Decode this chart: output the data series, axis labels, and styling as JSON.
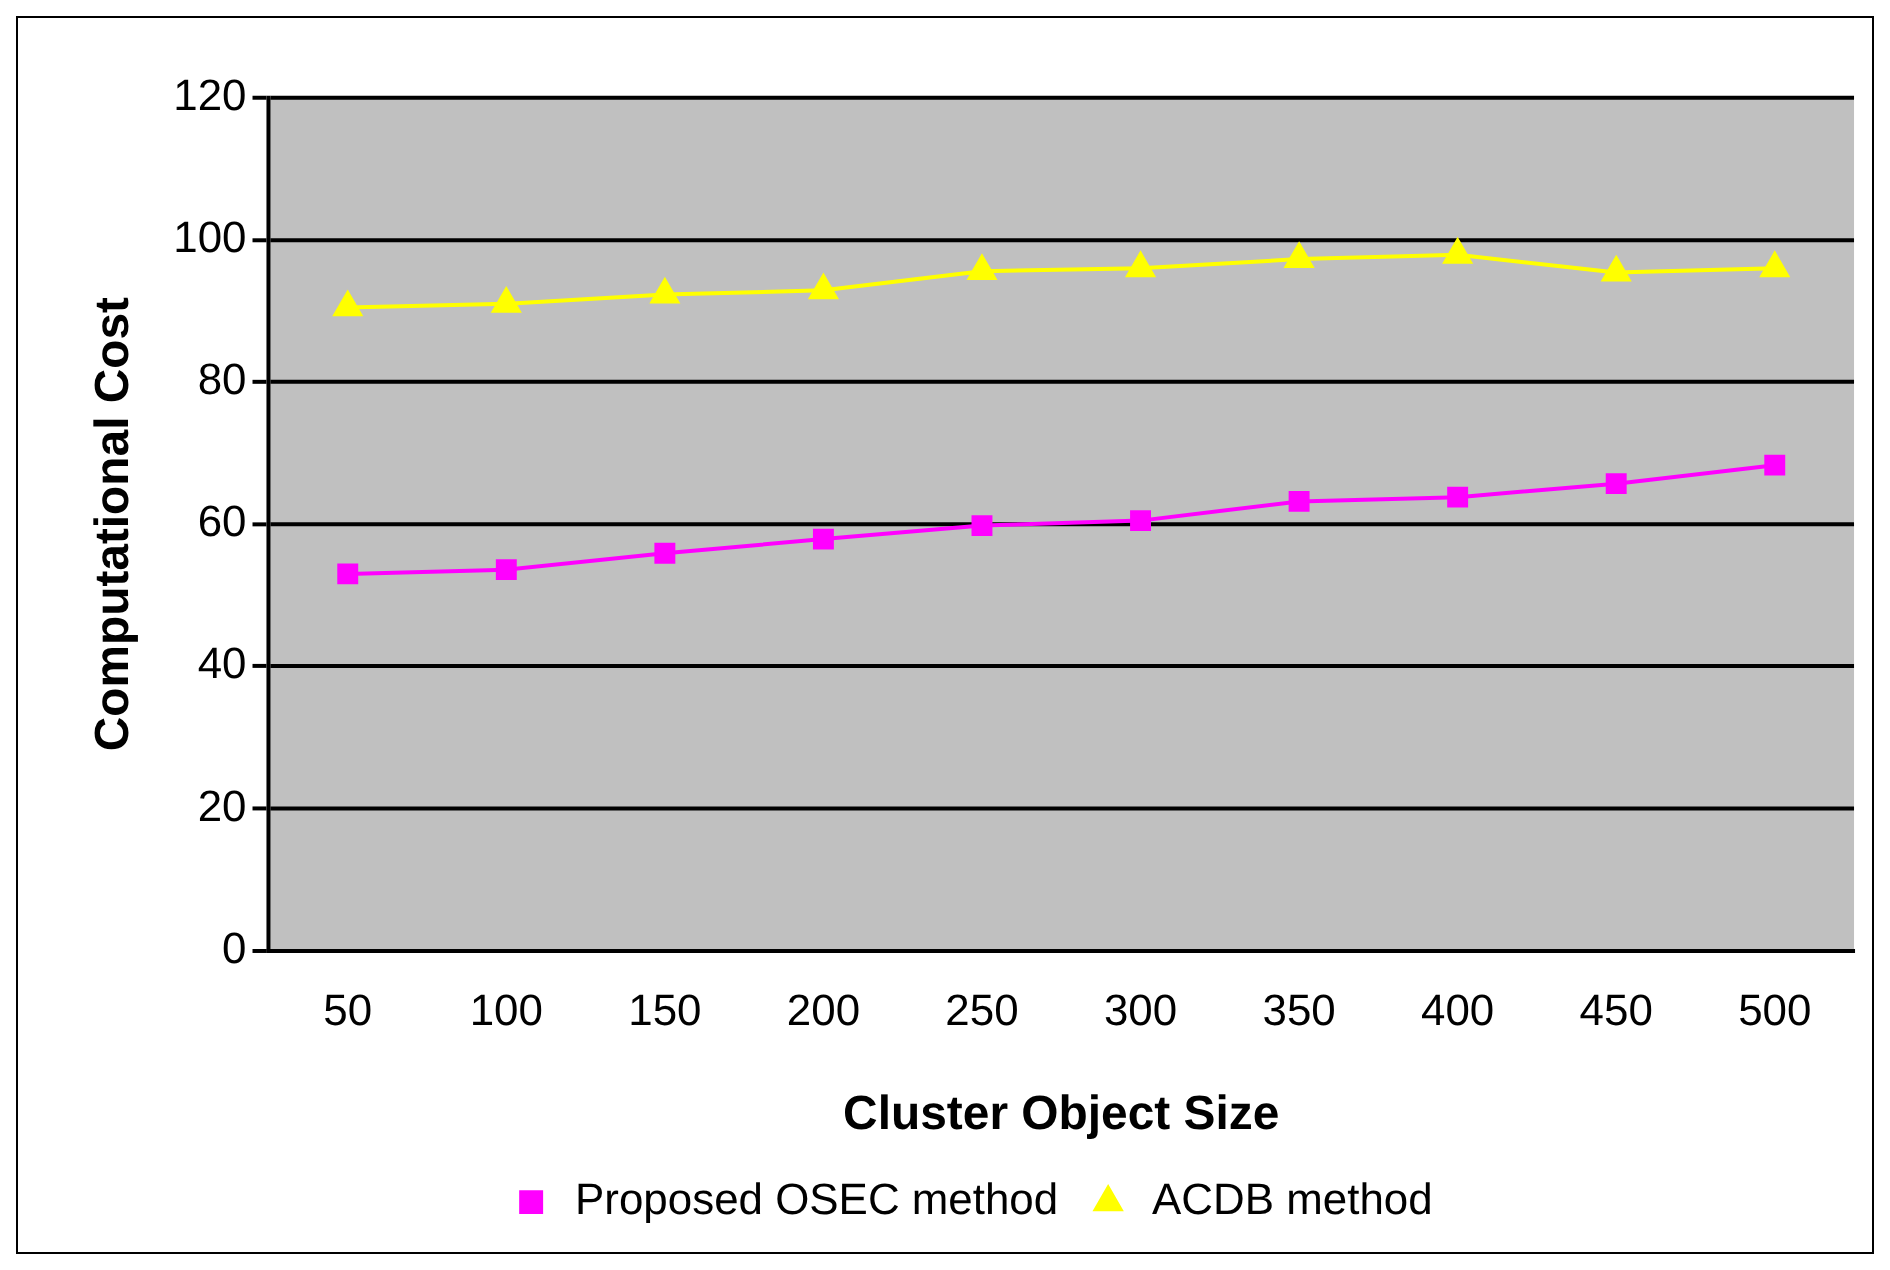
{
  "chart_data": {
    "type": "line",
    "xlabel": "Cluster Object Size",
    "ylabel": "Computational Cost",
    "categories": [
      "50",
      "100",
      "150",
      "200",
      "250",
      "300",
      "350",
      "400",
      "450",
      "500"
    ],
    "series": [
      {
        "name": "Proposed OSEC method",
        "color": "#ff00ff",
        "marker": "square",
        "values": [
          53,
          53.6,
          55.9,
          57.9,
          59.8,
          60.5,
          63.2,
          63.8,
          65.7,
          68.3
        ]
      },
      {
        "name": "ACDB method",
        "color": "#ffff00",
        "marker": "triangle",
        "values": [
          90.5,
          91,
          92.3,
          92.9,
          95.6,
          96,
          97.3,
          97.9,
          95.4,
          96
        ]
      }
    ],
    "ylim": [
      0,
      120
    ],
    "yticks": [
      0,
      20,
      40,
      60,
      80,
      100,
      120
    ],
    "grid": "y",
    "legend": "bottom"
  }
}
